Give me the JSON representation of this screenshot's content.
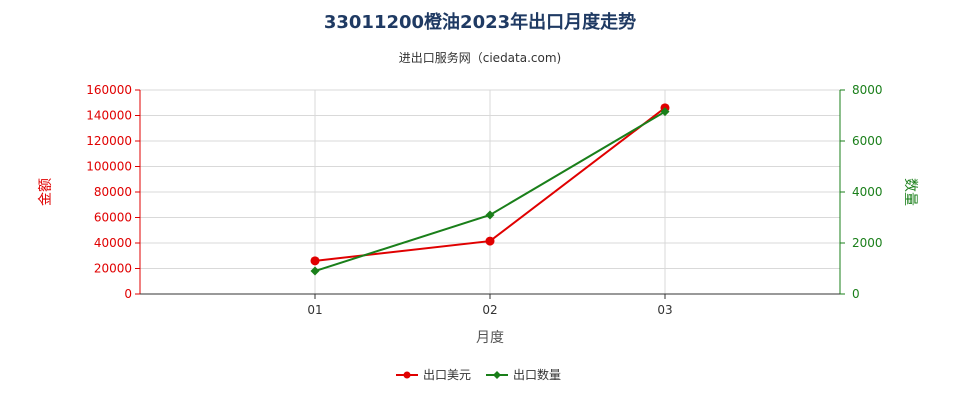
{
  "chart_data": {
    "type": "line",
    "title": "33011200橙油2023年出口月度走势",
    "subtitle": "进出口服务网（ciedata.com)",
    "xlabel": "月度",
    "ylabel_left": "金额",
    "ylabel_right": "数量",
    "categories": [
      "01",
      "02",
      "03"
    ],
    "ylim_left": [
      0,
      160000
    ],
    "ylim_right": [
      0,
      8000
    ],
    "left_ticks": [
      "0",
      "20000",
      "40000",
      "60000",
      "80000",
      "100000",
      "120000",
      "140000",
      "160000"
    ],
    "right_ticks": [
      "0",
      "2000",
      "4000",
      "6000",
      "8000"
    ],
    "grid": true,
    "legend_position": "bottom",
    "colors": {
      "left_axis": "#e00000",
      "right_axis": "#1a7f1a",
      "series_usd": "#e00000",
      "series_qty": "#1a7f1a"
    },
    "series": [
      {
        "name": "出口美元",
        "axis": "left",
        "values": [
          26000,
          41500,
          146000
        ]
      },
      {
        "name": "出口数量",
        "axis": "right",
        "values": [
          900,
          3100,
          7150
        ]
      }
    ]
  }
}
